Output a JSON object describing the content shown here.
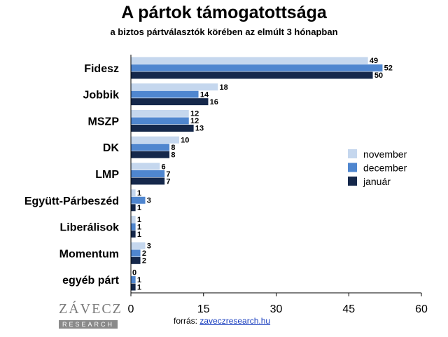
{
  "title": "A pártok támogatottsága",
  "subtitle": "a biztos pártválasztók körében az elmúlt 3 hónapban",
  "source": {
    "label": "forrás:",
    "link": "zaveczresearch.hu"
  },
  "logo": {
    "main": "ZÁVECZ",
    "sub": "RESEARCH"
  },
  "colors": {
    "november": "#c5d7ee",
    "december": "#4f86cf",
    "januar": "#15284b"
  },
  "chart_data": {
    "type": "bar",
    "orientation": "horizontal",
    "categories": [
      "Fidesz",
      "Jobbik",
      "MSZP",
      "DK",
      "LMP",
      "Együtt-Párbeszéd",
      "Liberálisok",
      "Momentum",
      "egyéb párt"
    ],
    "series": [
      {
        "name": "november",
        "values": [
          49,
          18,
          12,
          10,
          6,
          1,
          1,
          3,
          0
        ]
      },
      {
        "name": "december",
        "values": [
          52,
          14,
          12,
          8,
          7,
          3,
          1,
          2,
          1
        ]
      },
      {
        "name": "január",
        "values": [
          50,
          16,
          13,
          8,
          7,
          1,
          1,
          2,
          1
        ]
      }
    ],
    "xlim": [
      0,
      60
    ],
    "xticks": [
      0,
      15,
      30,
      45,
      60
    ],
    "legend_position": "right",
    "grid": false
  }
}
